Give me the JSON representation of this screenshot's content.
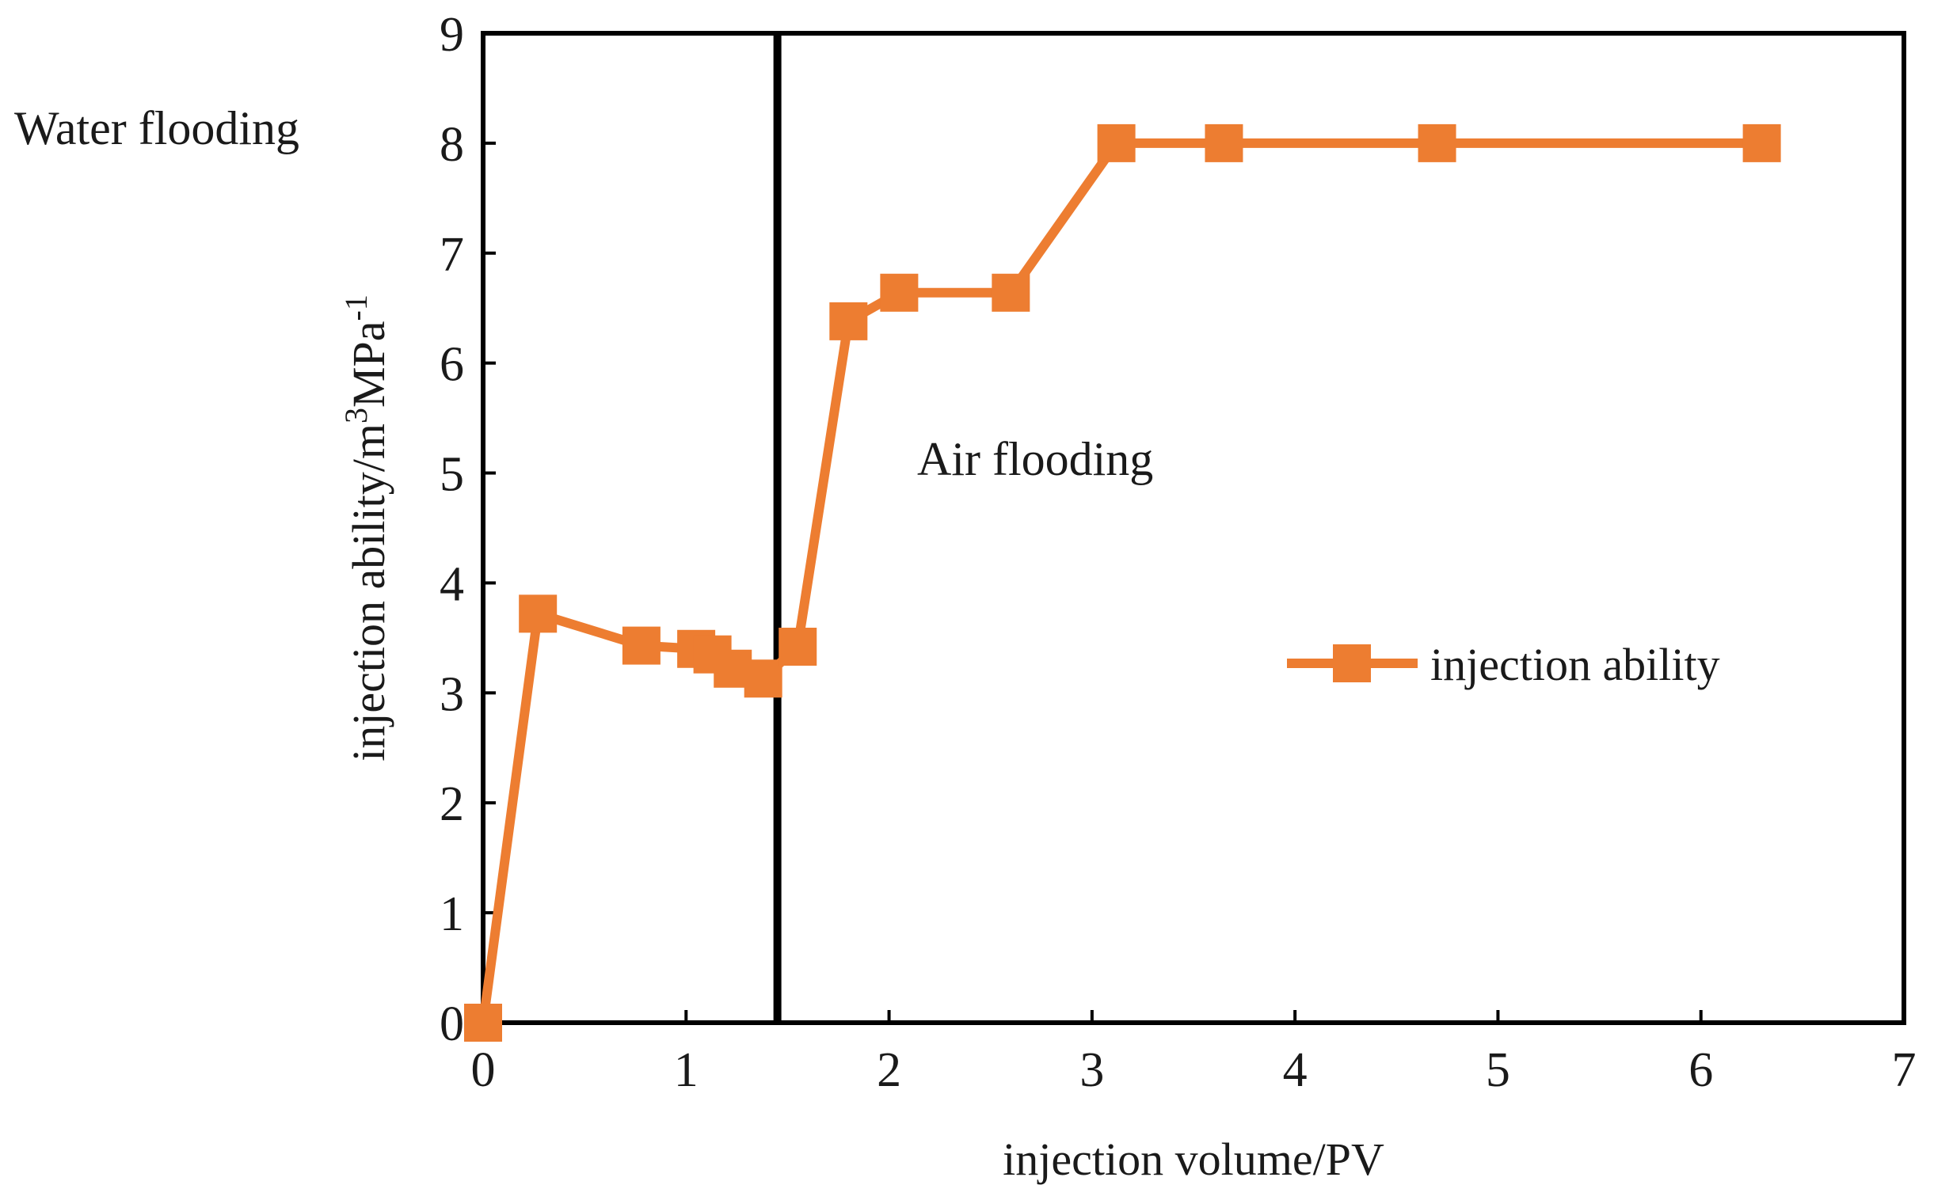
{
  "chart_data": {
    "type": "line",
    "title": "",
    "xlabel": "injection volume/PV",
    "ylabel": {
      "base": "injection ability/m",
      "sup1": "3",
      "mid": "MPa",
      "sup2": "-1"
    },
    "xlim": [
      0,
      7
    ],
    "ylim": [
      0,
      9
    ],
    "x_ticks": [
      "0",
      "1",
      "2",
      "3",
      "4",
      "5",
      "6",
      "7"
    ],
    "y_ticks": [
      "0",
      "1",
      "2",
      "3",
      "4",
      "5",
      "6",
      "7",
      "8",
      "9"
    ],
    "grid": false,
    "legend_position": "center-right",
    "series": [
      {
        "name": "injection ability",
        "color": "#ED7D31",
        "marker": "square",
        "x": [
          0,
          0.27,
          0.78,
          1.05,
          1.13,
          1.23,
          1.38,
          1.55,
          1.8,
          2.05,
          2.6,
          3.12,
          3.65,
          4.7,
          6.3
        ],
        "y": [
          0,
          3.72,
          3.43,
          3.4,
          3.35,
          3.22,
          3.13,
          3.42,
          6.38,
          6.64,
          6.64,
          8.0,
          8.0,
          8.0,
          8.0
        ]
      }
    ],
    "divider": {
      "x": 1.45,
      "color": "#000000"
    },
    "annotations": {
      "left": "Water flooding",
      "right": "Air flooding"
    }
  }
}
